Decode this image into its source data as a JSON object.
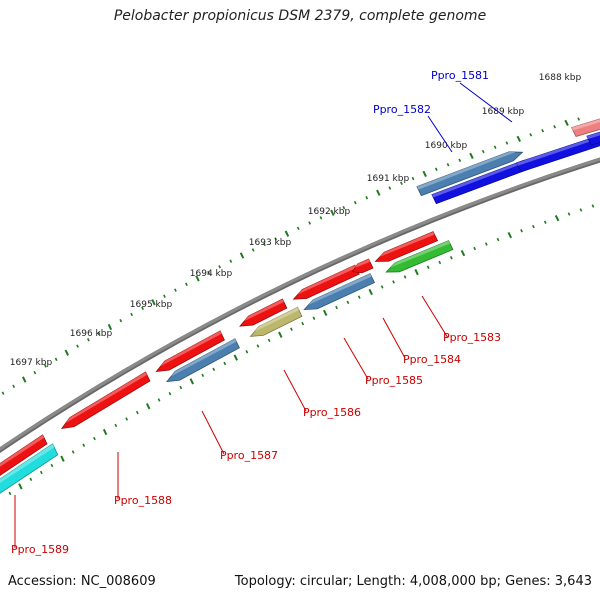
{
  "title": "Pelobacter propionicus DSM 2379, complete genome",
  "accession": "Accession: NC_008609",
  "topology": "Topology: circular; Length: 4,008,000 bp; Genes: 3,643",
  "kbp_labels": [
    "1688 kbp",
    "1689 kbp",
    "1690 kbp",
    "1691 kbp",
    "1692 kbp",
    "1693 kbp",
    "1694 kbp",
    "1695 kbp",
    "1696 kbp",
    "1697 kbp"
  ],
  "colors": {
    "backbone": "#8a8a8a",
    "tick": "#1e7a1e",
    "forward_label": "#0000cc",
    "reverse_label": "#cc0000",
    "red": "#ee1111",
    "blue": "#1010e0",
    "steelblue": "#4a7fb0",
    "green": "#33bb33",
    "khaki": "#bdb76b",
    "cyan": "#22dddd",
    "salmon": "#f08080"
  },
  "genes": [
    {
      "name": "Ppro_1581",
      "strand": "forward",
      "color": "blue"
    },
    {
      "name": "Ppro_1582",
      "strand": "forward",
      "color": "blue"
    },
    {
      "name": "Ppro_1583",
      "strand": "reverse",
      "color": "green"
    },
    {
      "name": "Ppro_1584",
      "strand": "reverse",
      "color": "red"
    },
    {
      "name": "Ppro_1585",
      "strand": "reverse",
      "color": "steelblue"
    },
    {
      "name": "Ppro_1586",
      "strand": "reverse",
      "color": "khaki"
    },
    {
      "name": "Ppro_1587",
      "strand": "reverse",
      "color": "steelblue"
    },
    {
      "name": "Ppro_1588",
      "strand": "reverse",
      "color": "red"
    },
    {
      "name": "Ppro_1589",
      "strand": "reverse",
      "color": "cyan"
    }
  ]
}
